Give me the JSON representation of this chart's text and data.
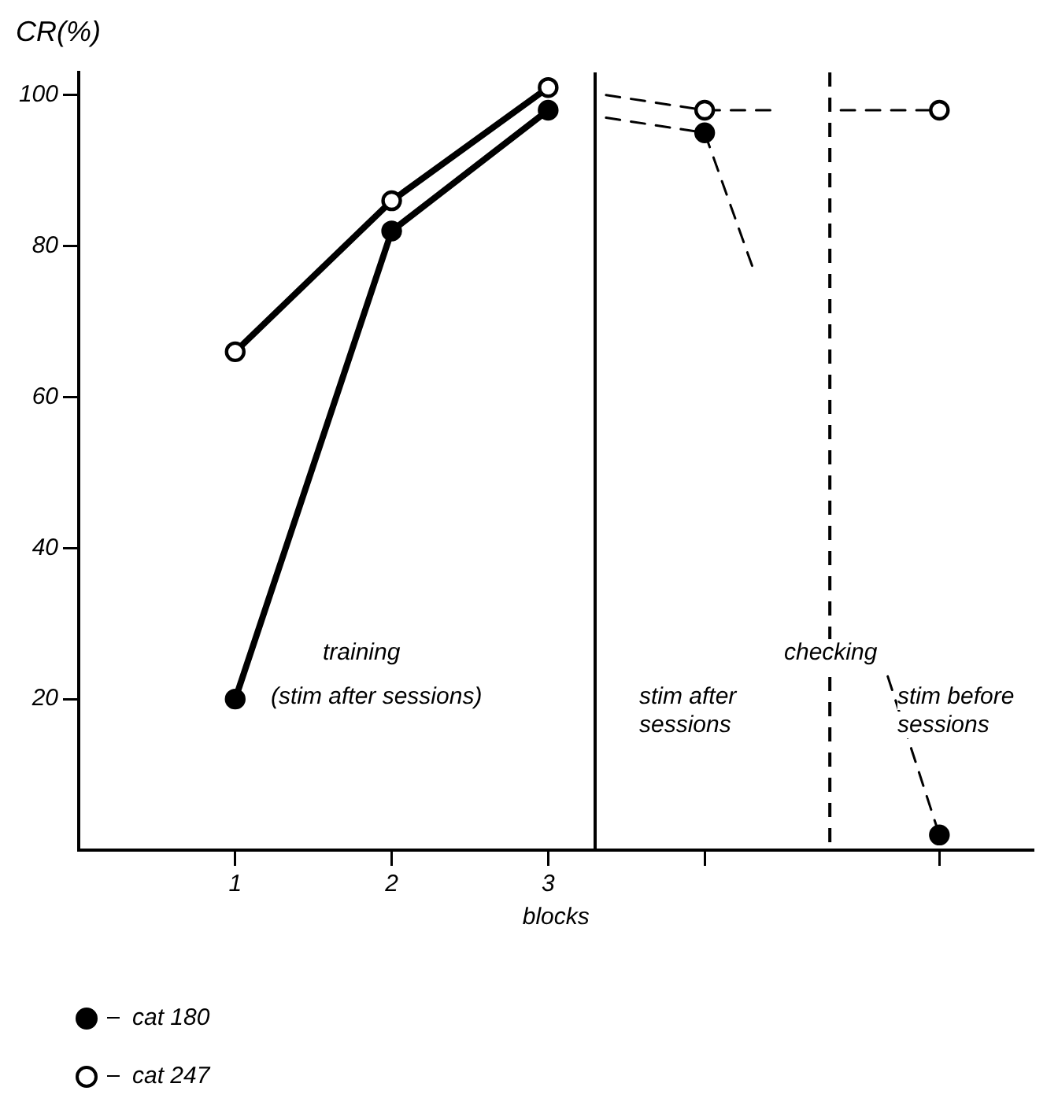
{
  "chart_data": {
    "type": "line",
    "ylabel": "CR(%)",
    "xlabel": "blocks",
    "xlim": [
      0,
      6.1
    ],
    "xticks": [
      1,
      2,
      3,
      {
        "value": 4,
        "label": null
      },
      {
        "value": 5.5,
        "label": null
      }
    ],
    "ylim": [
      0,
      103
    ],
    "yticks": [
      20,
      40,
      60,
      80,
      100
    ],
    "marker": "circle",
    "line_style": "solid",
    "legend": "bottom left",
    "annotations": [
      "training",
      "(stim after sessions)",
      "checking",
      "stim after sessions",
      "stim before sessions"
    ],
    "ref_lines": [
      {
        "axis": "x",
        "value": 3.3
      },
      {
        "axis": "x",
        "value": 4.8,
        "line_style": "dashed"
      }
    ],
    "series": [
      {
        "name": "cat 180",
        "color": "#000000",
        "x": [
          1,
          2,
          3
        ],
        "values": [
          20,
          82,
          98
        ]
      },
      {
        "name": "cat 247",
        "color": "#000000",
        "colors": [
          "#ffffff",
          "#ffffff",
          "#ffffff"
        ],
        "x": [
          1,
          2,
          3
        ],
        "values": [
          66,
          86,
          101
        ]
      },
      {
        "color": "#000000",
        "line_style": "dashed",
        "marker": "none",
        "x": [
          3.37,
          4,
          4.31
        ],
        "values": [
          97,
          95,
          77
        ]
      },
      {
        "color": "#000000",
        "line_style": "dashed",
        "marker": "none",
        "x": [
          3.37,
          4,
          4.44
        ],
        "values": [
          100,
          98,
          98
        ]
      },
      {
        "color": "#000000",
        "line_style": "dashed",
        "marker": "none",
        "x": [
          4.87,
          5.5
        ],
        "values": [
          98,
          98
        ]
      },
      {
        "color": "#000000",
        "line_style": "dashed",
        "marker": "none",
        "x": [
          5.17,
          5.5
        ],
        "values": [
          23,
          2
        ]
      },
      {
        "type": "scatter",
        "color": "#000000",
        "marker": "circle",
        "x": [
          4,
          5.5
        ],
        "values": [
          95,
          2
        ]
      },
      {
        "type": "scatter",
        "color": "#000000",
        "colors": [
          "#ffffff",
          "#ffffff"
        ],
        "marker": "circle",
        "x": [
          4,
          5.5
        ],
        "values": [
          98,
          98
        ]
      }
    ]
  }
}
